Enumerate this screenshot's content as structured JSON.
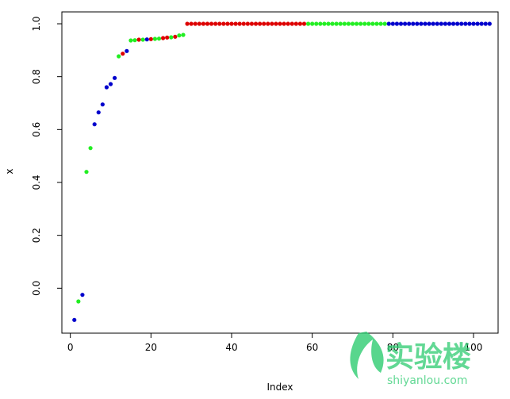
{
  "chart_data": {
    "type": "scatter",
    "xlabel": "Index",
    "ylabel": "x",
    "xlim": [
      -2.1,
      106.1
    ],
    "ylim": [
      -0.17,
      1.045
    ],
    "x_ticks": [
      0,
      20,
      40,
      60,
      80,
      100
    ],
    "y_ticks": [
      0.0,
      0.2,
      0.4,
      0.6,
      0.8,
      1.0
    ],
    "x_tick_labels": [
      "0",
      "20",
      "40",
      "60",
      "80",
      "100"
    ],
    "y_tick_labels": [
      "0.0",
      "0.2",
      "0.4",
      "0.6",
      "0.8",
      "1.0"
    ],
    "colors": {
      "blue": "#0000cc",
      "green": "#22ee22",
      "red": "#dd0000"
    },
    "points": [
      {
        "x": 1,
        "y": -0.12,
        "color": "blue"
      },
      {
        "x": 2,
        "y": -0.05,
        "color": "green"
      },
      {
        "x": 3,
        "y": -0.025,
        "color": "blue"
      },
      {
        "x": 4,
        "y": 0.44,
        "color": "green"
      },
      {
        "x": 5,
        "y": 0.53,
        "color": "green"
      },
      {
        "x": 6,
        "y": 0.62,
        "color": "blue"
      },
      {
        "x": 7,
        "y": 0.665,
        "color": "blue"
      },
      {
        "x": 8,
        "y": 0.695,
        "color": "blue"
      },
      {
        "x": 9,
        "y": 0.76,
        "color": "blue"
      },
      {
        "x": 10,
        "y": 0.772,
        "color": "blue"
      },
      {
        "x": 11,
        "y": 0.795,
        "color": "blue"
      },
      {
        "x": 12,
        "y": 0.877,
        "color": "green"
      },
      {
        "x": 13,
        "y": 0.887,
        "color": "red"
      },
      {
        "x": 14,
        "y": 0.897,
        "color": "blue"
      },
      {
        "x": 15,
        "y": 0.937,
        "color": "green"
      },
      {
        "x": 16,
        "y": 0.938,
        "color": "green"
      },
      {
        "x": 17,
        "y": 0.94,
        "color": "red"
      },
      {
        "x": 18,
        "y": 0.94,
        "color": "green"
      },
      {
        "x": 19,
        "y": 0.941,
        "color": "blue"
      },
      {
        "x": 20,
        "y": 0.942,
        "color": "red"
      },
      {
        "x": 21,
        "y": 0.943,
        "color": "green"
      },
      {
        "x": 22,
        "y": 0.944,
        "color": "green"
      },
      {
        "x": 23,
        "y": 0.946,
        "color": "red"
      },
      {
        "x": 24,
        "y": 0.948,
        "color": "red"
      },
      {
        "x": 25,
        "y": 0.949,
        "color": "green"
      },
      {
        "x": 26,
        "y": 0.951,
        "color": "red"
      },
      {
        "x": 27,
        "y": 0.956,
        "color": "green"
      },
      {
        "x": 28,
        "y": 0.958,
        "color": "green"
      }
    ],
    "plateau_runs": [
      {
        "x_start": 29,
        "x_end": 58,
        "y": 1.0,
        "color": "red"
      },
      {
        "x_start": 59,
        "x_end": 78,
        "y": 1.0,
        "color": "green"
      },
      {
        "x_start": 79,
        "x_end": 104,
        "y": 1.0,
        "color": "blue"
      }
    ]
  },
  "watermark": {
    "text": "实验楼",
    "subtext": "shiyanlou.com",
    "color": "#2ecc71"
  }
}
